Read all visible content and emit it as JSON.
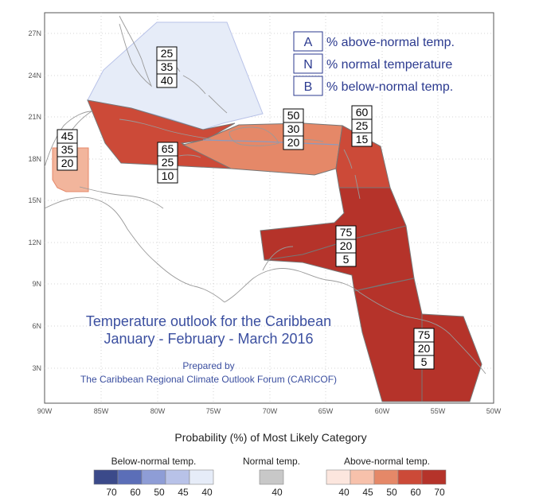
{
  "map": {
    "lon_ticks": [
      "90W",
      "85W",
      "80W",
      "75W",
      "70W",
      "65W",
      "60W",
      "55W",
      "50W"
    ],
    "lat_ticks": [
      "3N",
      "6N",
      "9N",
      "12N",
      "15N",
      "18N",
      "21N",
      "24N",
      "27N"
    ],
    "colors": {
      "above_70": "#b5332a",
      "above_60": "#cc4a38",
      "above_50": "#e58868",
      "above_45": "#f2b59c",
      "normal_40": "#c8c8c8",
      "below_40": "#e6ecf8",
      "land": "#ffffff",
      "coast": "#9a9a9a"
    },
    "regions": [
      {
        "name": "bahamas",
        "category": "below",
        "probability": 40,
        "values": [
          "25",
          "35",
          "40"
        ]
      },
      {
        "name": "belize",
        "category": "above",
        "probability": 45,
        "values": [
          "45",
          "35",
          "20"
        ]
      },
      {
        "name": "cuba-jamaica",
        "category": "above",
        "probability": 65,
        "values": [
          "65",
          "25",
          "10"
        ]
      },
      {
        "name": "greater-antilles-east",
        "category": "above",
        "probability": 50,
        "values": [
          "50",
          "30",
          "20"
        ]
      },
      {
        "name": "lesser-antilles-north",
        "category": "above",
        "probability": 60,
        "values": [
          "60",
          "25",
          "15"
        ]
      },
      {
        "name": "eastern-caribbean",
        "category": "above",
        "probability": 75,
        "values": [
          "75",
          "20",
          "5"
        ]
      },
      {
        "name": "guianas",
        "category": "above",
        "probability": 75,
        "values": [
          "75",
          "20",
          "5"
        ]
      }
    ]
  },
  "legend": {
    "items": [
      {
        "key": "A",
        "desc": "% above-normal temp."
      },
      {
        "key": "N",
        "desc": "% normal temperature"
      },
      {
        "key": "B",
        "desc": "% below-normal temp."
      }
    ]
  },
  "title": {
    "line1": "Temperature outlook for the Caribbean",
    "line2": "January - February - March 2016",
    "prepared_by": "Prepared by",
    "org": "The Caribbean Regional Climate Outlook Forum (CARICOF)"
  },
  "scale": {
    "title": "Probability (%) of Most Likely Category",
    "groups": [
      {
        "label": "Below-normal temp.",
        "values": [
          "70",
          "60",
          "50",
          "45",
          "40"
        ],
        "colors": [
          "#3b4a8a",
          "#5b6eb8",
          "#8e9dd6",
          "#b8c2e8",
          "#e6ecf8"
        ]
      },
      {
        "label": "Normal temp.",
        "values": [
          "40"
        ],
        "colors": [
          "#c8c8c8"
        ]
      },
      {
        "label": "Above-normal temp.",
        "values": [
          "40",
          "45",
          "50",
          "60",
          "70"
        ],
        "colors": [
          "#fce6de",
          "#f7c1ab",
          "#e58868",
          "#cc4a38",
          "#b5332a"
        ]
      }
    ]
  }
}
